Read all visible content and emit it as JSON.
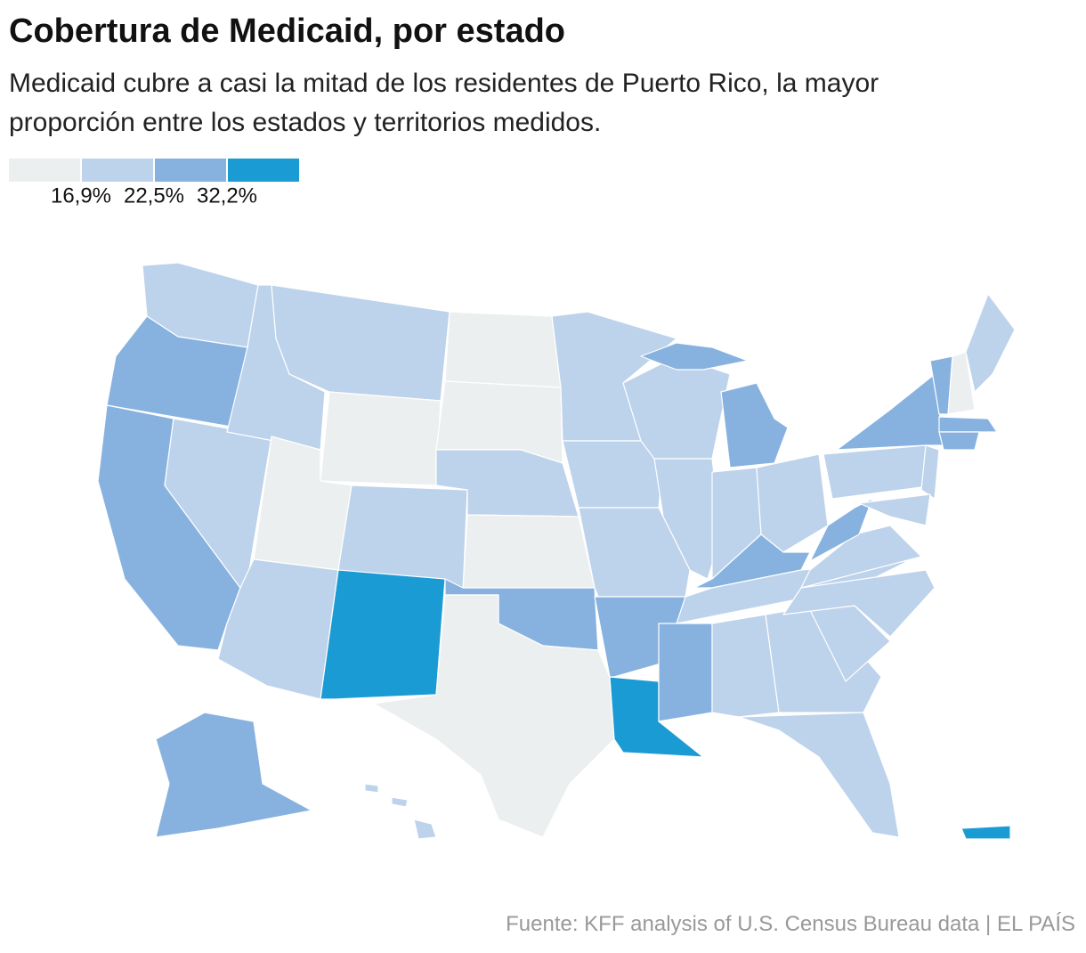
{
  "header": {
    "title": "Cobertura de Medicaid, por estado",
    "subtitle": "Medicaid cubre a casi la mitad de los residentes de Puerto Rico, la mayor proporción entre los estados y territorios medidos."
  },
  "legend": {
    "colors": [
      "#eceff0",
      "#bdd2eb",
      "#87b2df",
      "#1b9bd4"
    ],
    "breaks": [
      {
        "value": 16.9,
        "label": "16,9%"
      },
      {
        "value": 22.5,
        "label": "22,5%"
      },
      {
        "value": 32.2,
        "label": "32,2%"
      }
    ]
  },
  "source": "Fuente: KFF analysis of U.S. Census Bureau data | EL PAÍS"
}
